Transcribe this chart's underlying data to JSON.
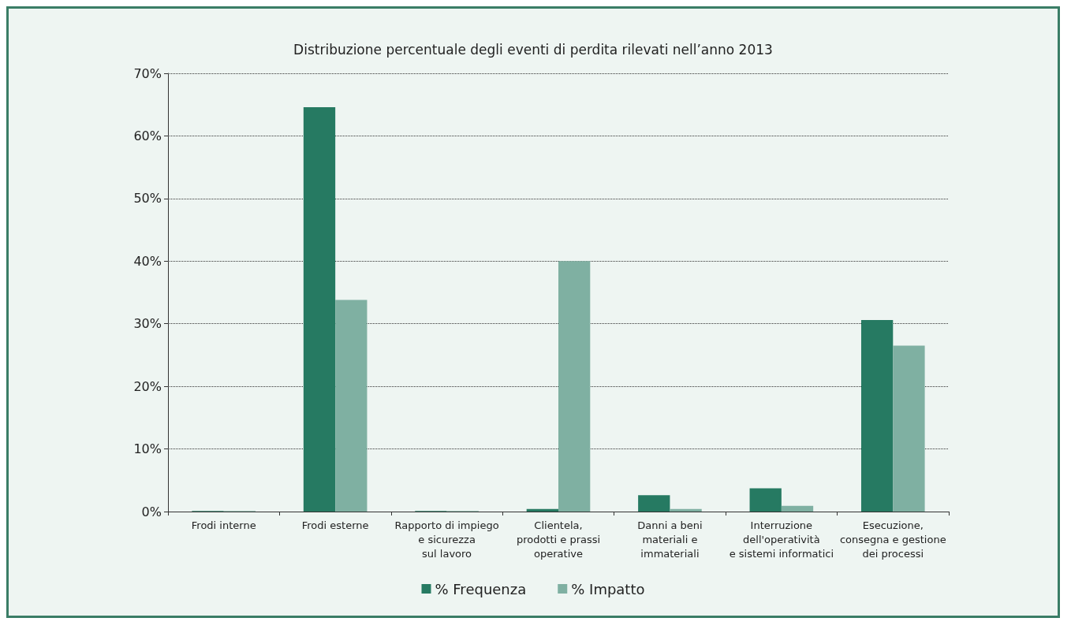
{
  "chart_data": {
    "type": "bar",
    "title": "Distribuzione percentuale degli eventi di perdita rilevati nell’anno 2013",
    "categories": [
      "Frodi interne",
      "Frodi esterne",
      "Rapporto di impiego\ne sicurezza\nsul lavoro",
      "Clientela,\nprodotti e prassi\noperative",
      "Danni a beni\nmateriali e\nimmateriali",
      "Interruzione\ndell'operatività\ne sistemi informatici",
      "Esecuzione,\nconsegna e gestione\ndei processi"
    ],
    "series": [
      {
        "name": "% Frequenza",
        "color": "#267a62",
        "values": [
          0.1,
          64.6,
          0.1,
          0.4,
          2.6,
          3.7,
          30.6
        ]
      },
      {
        "name": "% Impatto",
        "color": "#7fb0a2",
        "values": [
          0.1,
          33.8,
          0.1,
          40.0,
          0.4,
          0.9,
          26.5
        ]
      }
    ],
    "ylim": [
      0,
      70
    ],
    "yticks": [
      {
        "value": 0,
        "label": "0%"
      },
      {
        "value": 10,
        "label": "10%"
      },
      {
        "value": 20,
        "label": "20%"
      },
      {
        "value": 30,
        "label": "30%"
      },
      {
        "value": 40,
        "label": "40%"
      },
      {
        "value": 50,
        "label": "50%"
      },
      {
        "value": 60,
        "label": "60%"
      },
      {
        "value": 70,
        "label": "70%"
      }
    ],
    "grid": "y",
    "legend": "bottom"
  }
}
